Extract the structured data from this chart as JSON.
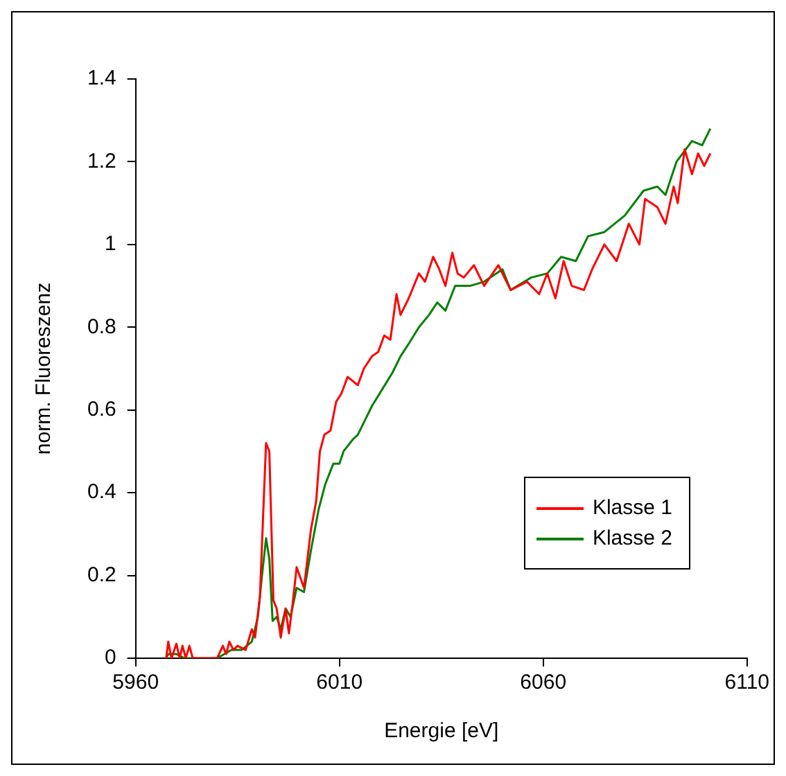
{
  "chart_data": {
    "type": "line",
    "xlabel": "Energie [eV]",
    "ylabel": "norm. Fluoreszenz",
    "xlim": [
      5960,
      6110
    ],
    "xticks": [
      5960,
      6010,
      6060,
      6110
    ],
    "ylim": [
      0,
      1.4
    ],
    "yticks": [
      0,
      0.2,
      0.4,
      0.6,
      0.8,
      1,
      1.2,
      1.4
    ],
    "grid": false,
    "legend": "bottom right",
    "marker": "none",
    "line_style": "solid",
    "series": [
      {
        "name": "Klasse 1",
        "color": "#ff0000",
        "x": [
          5967.5,
          5968,
          5968.8,
          5970,
          5970.8,
          5971.5,
          5972.3,
          5973.2,
          5974,
          5975,
          5980,
          5981.4,
          5982.2,
          5983,
          5984,
          5985,
          5987,
          5988.5,
          5989.3,
          5990.5,
          5991.5,
          5992,
          5992.8,
          5993.8,
          5994.6,
          5995.6,
          5996.8,
          5997.6,
          5998.5,
          5999.5,
          6001.3,
          6003,
          6004.3,
          6005.2,
          6006.3,
          6007.8,
          6009.2,
          6010.5,
          6012,
          6014.5,
          6016,
          6018,
          6019.5,
          6021,
          6022.5,
          6024,
          6025,
          6027,
          6029.5,
          6031,
          6033,
          6034.5,
          6036,
          6037.7,
          6039,
          6040.5,
          6043,
          6045.5,
          6049,
          6052,
          6056,
          6059,
          6061,
          6063,
          6065,
          6067,
          6070,
          6072,
          6075,
          6078,
          6081,
          6083.6,
          6085,
          6088,
          6090,
          6092,
          6093,
          6094.7,
          6096.5,
          6098,
          6099.5,
          6101
        ],
        "values": [
          0,
          0.04,
          0,
          0.035,
          0,
          0.03,
          0,
          0.03,
          0,
          0,
          0,
          0.03,
          0.01,
          0.04,
          0.02,
          0.03,
          0.02,
          0.07,
          0.05,
          0.15,
          0.4,
          0.52,
          0.5,
          0.14,
          0.12,
          0.05,
          0.12,
          0.06,
          0.13,
          0.22,
          0.17,
          0.31,
          0.38,
          0.5,
          0.54,
          0.55,
          0.62,
          0.64,
          0.68,
          0.66,
          0.7,
          0.73,
          0.74,
          0.78,
          0.77,
          0.88,
          0.83,
          0.87,
          0.93,
          0.91,
          0.97,
          0.94,
          0.9,
          0.98,
          0.93,
          0.92,
          0.95,
          0.9,
          0.95,
          0.89,
          0.91,
          0.88,
          0.93,
          0.87,
          0.96,
          0.9,
          0.89,
          0.94,
          1,
          0.96,
          1.05,
          1,
          1.11,
          1.09,
          1.05,
          1.14,
          1.1,
          1.23,
          1.17,
          1.22,
          1.19,
          1.22
        ]
      },
      {
        "name": "Klasse 2",
        "color": "#008000",
        "x": [
          5967.5,
          5968,
          5970,
          5972,
          5975,
          5980,
          5983.5,
          5986,
          5988.5,
          5990,
          5991,
          5992,
          5992.8,
          5993.6,
          5994.6,
          5995.6,
          5996.8,
          5998,
          5999.5,
          6001.3,
          6003,
          6004.9,
          6006.5,
          6008.5,
          6010,
          6011,
          6013.4,
          6014.5,
          6016,
          6018,
          6020.5,
          6023,
          6025,
          6027,
          6029.5,
          6032,
          6034,
          6036,
          6038.4,
          6042,
          6045.5,
          6050,
          6052,
          6057,
          6061,
          6064.4,
          6068,
          6071,
          6075,
          6080,
          6084.6,
          6088,
          6090,
          6092.7,
          6096.5,
          6099,
          6101
        ],
        "values": [
          0,
          0.01,
          0.01,
          0,
          0,
          0,
          0.02,
          0.02,
          0.04,
          0.1,
          0.2,
          0.29,
          0.24,
          0.09,
          0.1,
          0.07,
          0.12,
          0.1,
          0.17,
          0.16,
          0.26,
          0.36,
          0.42,
          0.47,
          0.47,
          0.5,
          0.53,
          0.54,
          0.57,
          0.61,
          0.65,
          0.69,
          0.73,
          0.76,
          0.8,
          0.83,
          0.86,
          0.84,
          0.9,
          0.9,
          0.91,
          0.94,
          0.89,
          0.92,
          0.93,
          0.97,
          0.96,
          1.02,
          1.03,
          1.07,
          1.13,
          1.14,
          1.12,
          1.2,
          1.25,
          1.24,
          1.28
        ]
      }
    ]
  }
}
